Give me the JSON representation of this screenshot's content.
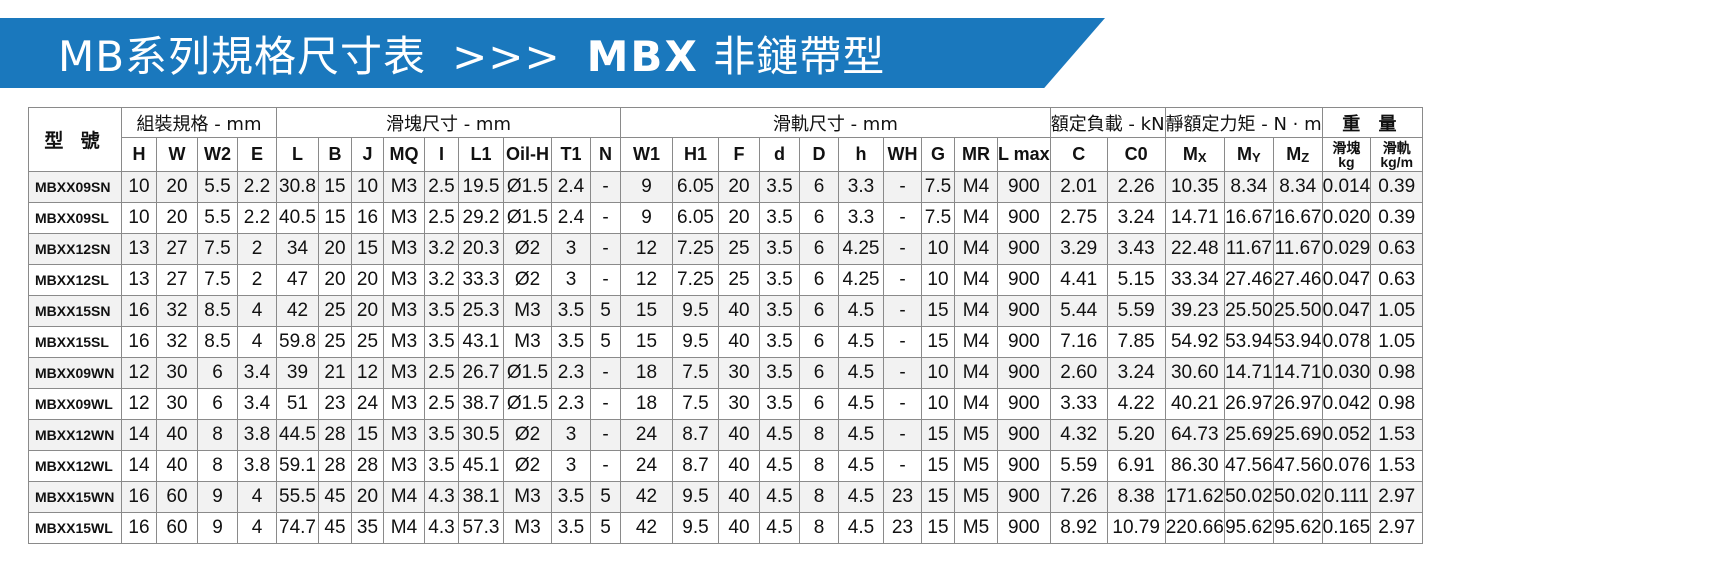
{
  "banner": {
    "title_prefix": "MB系列規格尺寸表",
    "separator": ">>>",
    "model": "MBX",
    "subtitle": "非鏈帶型",
    "color": "#1a78bd"
  },
  "table": {
    "model_header": "型 號",
    "groups": {
      "assembly": "組裝規格 - mm",
      "block": "滑塊尺寸 - mm",
      "rail": "滑軌尺寸 - mm",
      "load": "額定負載 - kN",
      "moment": "靜額定力矩 - N · m",
      "weight": "重 量"
    },
    "columns": [
      "H",
      "W",
      "W2",
      "E",
      "L",
      "B",
      "J",
      "MQ",
      "I",
      "L1",
      "Oil-H",
      "T1",
      "N",
      "W1",
      "H1",
      "F",
      "d",
      "D",
      "h",
      "WH",
      "G",
      "MR",
      "L max",
      "C",
      "C0"
    ],
    "moment_cols": [
      {
        "base": "M",
        "sub": "X"
      },
      {
        "base": "M",
        "sub": "Y"
      },
      {
        "base": "M",
        "sub": "Z"
      }
    ],
    "weight_cols": [
      {
        "top": "滑塊",
        "bottom": "kg"
      },
      {
        "top": "滑軌",
        "bottom": "kg/m"
      }
    ],
    "rows": [
      [
        "MBXX09SN",
        "10",
        "20",
        "5.5",
        "2.2",
        "30.8",
        "15",
        "10",
        "M3",
        "2.5",
        "19.5",
        "Ø1.5",
        "2.4",
        "-",
        "9",
        "6.05",
        "20",
        "3.5",
        "6",
        "3.3",
        "-",
        "7.5",
        "M4",
        "900",
        "2.01",
        "2.26",
        "10.35",
        "8.34",
        "8.34",
        "0.014",
        "0.39"
      ],
      [
        "MBXX09SL",
        "10",
        "20",
        "5.5",
        "2.2",
        "40.5",
        "15",
        "16",
        "M3",
        "2.5",
        "29.2",
        "Ø1.5",
        "2.4",
        "-",
        "9",
        "6.05",
        "20",
        "3.5",
        "6",
        "3.3",
        "-",
        "7.5",
        "M4",
        "900",
        "2.75",
        "3.24",
        "14.71",
        "16.67",
        "16.67",
        "0.020",
        "0.39"
      ],
      [
        "MBXX12SN",
        "13",
        "27",
        "7.5",
        "2",
        "34",
        "20",
        "15",
        "M3",
        "3.2",
        "20.3",
        "Ø2",
        "3",
        "-",
        "12",
        "7.25",
        "25",
        "3.5",
        "6",
        "4.25",
        "-",
        "10",
        "M4",
        "900",
        "3.29",
        "3.43",
        "22.48",
        "11.67",
        "11.67",
        "0.029",
        "0.63"
      ],
      [
        "MBXX12SL",
        "13",
        "27",
        "7.5",
        "2",
        "47",
        "20",
        "20",
        "M3",
        "3.2",
        "33.3",
        "Ø2",
        "3",
        "-",
        "12",
        "7.25",
        "25",
        "3.5",
        "6",
        "4.25",
        "-",
        "10",
        "M4",
        "900",
        "4.41",
        "5.15",
        "33.34",
        "27.46",
        "27.46",
        "0.047",
        "0.63"
      ],
      [
        "MBXX15SN",
        "16",
        "32",
        "8.5",
        "4",
        "42",
        "25",
        "20",
        "M3",
        "3.5",
        "25.3",
        "M3",
        "3.5",
        "5",
        "15",
        "9.5",
        "40",
        "3.5",
        "6",
        "4.5",
        "-",
        "15",
        "M4",
        "900",
        "5.44",
        "5.59",
        "39.23",
        "25.50",
        "25.50",
        "0.047",
        "1.05"
      ],
      [
        "MBXX15SL",
        "16",
        "32",
        "8.5",
        "4",
        "59.8",
        "25",
        "25",
        "M3",
        "3.5",
        "43.1",
        "M3",
        "3.5",
        "5",
        "15",
        "9.5",
        "40",
        "3.5",
        "6",
        "4.5",
        "-",
        "15",
        "M4",
        "900",
        "7.16",
        "7.85",
        "54.92",
        "53.94",
        "53.94",
        "0.078",
        "1.05"
      ],
      [
        "MBXX09WN",
        "12",
        "30",
        "6",
        "3.4",
        "39",
        "21",
        "12",
        "M3",
        "2.5",
        "26.7",
        "Ø1.5",
        "2.3",
        "-",
        "18",
        "7.5",
        "30",
        "3.5",
        "6",
        "4.5",
        "-",
        "10",
        "M4",
        "900",
        "2.60",
        "3.24",
        "30.60",
        "14.71",
        "14.71",
        "0.030",
        "0.98"
      ],
      [
        "MBXX09WL",
        "12",
        "30",
        "6",
        "3.4",
        "51",
        "23",
        "24",
        "M3",
        "2.5",
        "38.7",
        "Ø1.5",
        "2.3",
        "-",
        "18",
        "7.5",
        "30",
        "3.5",
        "6",
        "4.5",
        "-",
        "10",
        "M4",
        "900",
        "3.33",
        "4.22",
        "40.21",
        "26.97",
        "26.97",
        "0.042",
        "0.98"
      ],
      [
        "MBXX12WN",
        "14",
        "40",
        "8",
        "3.8",
        "44.5",
        "28",
        "15",
        "M3",
        "3.5",
        "30.5",
        "Ø2",
        "3",
        "-",
        "24",
        "8.7",
        "40",
        "4.5",
        "8",
        "4.5",
        "-",
        "15",
        "M5",
        "900",
        "4.32",
        "5.20",
        "64.73",
        "25.69",
        "25.69",
        "0.052",
        "1.53"
      ],
      [
        "MBXX12WL",
        "14",
        "40",
        "8",
        "3.8",
        "59.1",
        "28",
        "28",
        "M3",
        "3.5",
        "45.1",
        "Ø2",
        "3",
        "-",
        "24",
        "8.7",
        "40",
        "4.5",
        "8",
        "4.5",
        "-",
        "15",
        "M5",
        "900",
        "5.59",
        "6.91",
        "86.30",
        "47.56",
        "47.56",
        "0.076",
        "1.53"
      ],
      [
        "MBXX15WN",
        "16",
        "60",
        "9",
        "4",
        "55.5",
        "45",
        "20",
        "M4",
        "4.3",
        "38.1",
        "M3",
        "3.5",
        "5",
        "42",
        "9.5",
        "40",
        "4.5",
        "8",
        "4.5",
        "23",
        "15",
        "M5",
        "900",
        "7.26",
        "8.38",
        "171.62",
        "50.02",
        "50.02",
        "0.111",
        "2.97"
      ],
      [
        "MBXX15WL",
        "16",
        "60",
        "9",
        "4",
        "74.7",
        "45",
        "35",
        "M4",
        "4.3",
        "57.3",
        "M3",
        "3.5",
        "5",
        "42",
        "9.5",
        "40",
        "4.5",
        "8",
        "4.5",
        "23",
        "15",
        "M5",
        "900",
        "8.92",
        "10.79",
        "220.66",
        "95.62",
        "95.62",
        "0.165",
        "2.97"
      ]
    ]
  }
}
